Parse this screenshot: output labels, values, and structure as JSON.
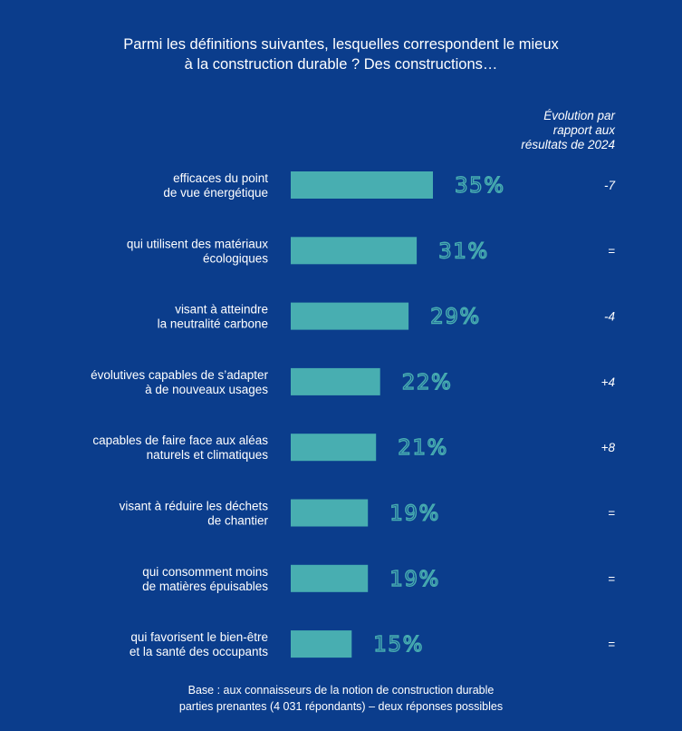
{
  "header": {
    "title_line1": "Parmi les définitions suivantes, lesquelles correspondent le mieux",
    "title_line2": "à la construction durable ? Des constructions…",
    "evolution_line1": "Évolution par",
    "evolution_line2": "rapport aux",
    "evolution_line3": "résultats de 2024"
  },
  "chart_data": {
    "type": "bar",
    "orientation": "horizontal",
    "categories": [
      [
        "efficaces du point",
        "de vue énergétique"
      ],
      [
        "qui utilisent des matériaux",
        "écologiques"
      ],
      [
        "visant à atteindre",
        "la neutralité carbone"
      ],
      [
        "évolutives capables de s’adapter",
        "à de nouveaux usages"
      ],
      [
        "capables de faire face aux aléas",
        "naturels et climatiques"
      ],
      [
        "visant à réduire les déchets",
        "de chantier"
      ],
      [
        "qui consomment moins",
        "de matières épuisables"
      ],
      [
        "qui favorisent le bien-être",
        "et la santé des occupants"
      ]
    ],
    "values": [
      35,
      31,
      29,
      22,
      21,
      19,
      19,
      15
    ],
    "value_labels": [
      "35%",
      "31%",
      "29%",
      "22%",
      "21%",
      "19%",
      "19%",
      "15%"
    ],
    "evolution": [
      "-7",
      "=",
      "-4",
      "+4",
      "+8",
      "=",
      "=",
      "="
    ],
    "unit": "%",
    "grid": false,
    "legend": "none",
    "bar_color": "#48aeb1",
    "label_color": "#48aeb1"
  },
  "footer": {
    "line1": "Base : aux connaisseurs de la notion de construction durable",
    "line2": "parties prenantes (4 031 répondants) – deux réponses possibles"
  }
}
